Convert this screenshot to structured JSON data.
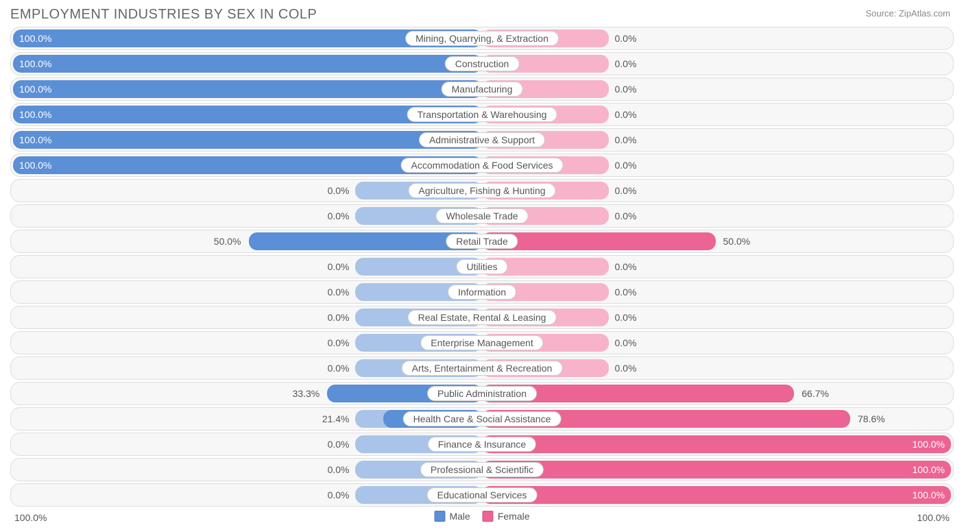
{
  "title": "EMPLOYMENT INDUSTRIES BY SEX IN COLP",
  "source": "Source: ZipAtlas.com",
  "chart": {
    "type": "diverging-bar",
    "axis": {
      "left_label": "100.0%",
      "right_label": "100.0%",
      "max_pct": 100.0
    },
    "colors": {
      "male": "#5b8fd6",
      "male_faded": "#a9c4e8",
      "female": "#ec6493",
      "female_faded": "#f7b3ca",
      "row_bg": "#f7f7f7",
      "row_border": "#dddddd",
      "label_bg": "#ffffff",
      "label_border": "#cccccc",
      "text": "#555555",
      "title_text": "#666666"
    },
    "base_bar_extent_pct": 13.5,
    "legend": [
      {
        "label": "Male",
        "color": "#5b8fd6"
      },
      {
        "label": "Female",
        "color": "#ec6493"
      }
    ],
    "rows": [
      {
        "category": "Mining, Quarrying, & Extraction",
        "male": 100.0,
        "female": 0.0
      },
      {
        "category": "Construction",
        "male": 100.0,
        "female": 0.0
      },
      {
        "category": "Manufacturing",
        "male": 100.0,
        "female": 0.0
      },
      {
        "category": "Transportation & Warehousing",
        "male": 100.0,
        "female": 0.0
      },
      {
        "category": "Administrative & Support",
        "male": 100.0,
        "female": 0.0
      },
      {
        "category": "Accommodation & Food Services",
        "male": 100.0,
        "female": 0.0
      },
      {
        "category": "Agriculture, Fishing & Hunting",
        "male": 0.0,
        "female": 0.0
      },
      {
        "category": "Wholesale Trade",
        "male": 0.0,
        "female": 0.0
      },
      {
        "category": "Retail Trade",
        "male": 50.0,
        "female": 50.0
      },
      {
        "category": "Utilities",
        "male": 0.0,
        "female": 0.0
      },
      {
        "category": "Information",
        "male": 0.0,
        "female": 0.0
      },
      {
        "category": "Real Estate, Rental & Leasing",
        "male": 0.0,
        "female": 0.0
      },
      {
        "category": "Enterprise Management",
        "male": 0.0,
        "female": 0.0
      },
      {
        "category": "Arts, Entertainment & Recreation",
        "male": 0.0,
        "female": 0.0
      },
      {
        "category": "Public Administration",
        "male": 33.3,
        "female": 66.7
      },
      {
        "category": "Health Care & Social Assistance",
        "male": 21.4,
        "female": 78.6
      },
      {
        "category": "Finance & Insurance",
        "male": 0.0,
        "female": 100.0
      },
      {
        "category": "Professional & Scientific",
        "male": 0.0,
        "female": 100.0
      },
      {
        "category": "Educational Services",
        "male": 0.0,
        "female": 100.0
      }
    ]
  }
}
